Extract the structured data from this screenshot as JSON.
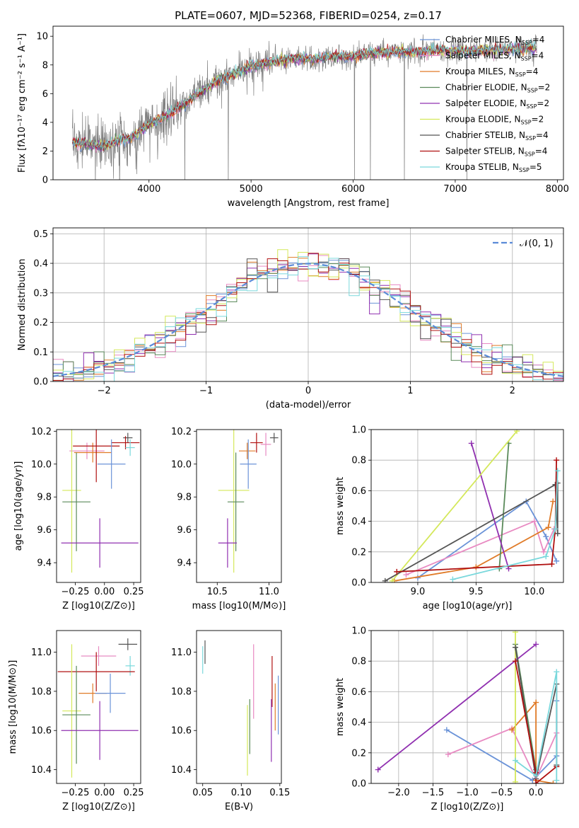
{
  "chart_data": [
    {
      "id": "spectrum",
      "type": "line",
      "title": "PLATE=0607, MJD=52368, FIBERID=0254, z=0.17",
      "xlabel": "wavelength [Angstrom, rest frame]",
      "ylabel": "Flux [fλ10⁻¹⁷ erg cm⁻² s⁻¹ A⁻¹]",
      "xlim": [
        3060,
        8060
      ],
      "ylim": [
        0,
        10.7
      ],
      "xticks": [
        4000,
        5000,
        6000,
        7000,
        8000
      ],
      "yticks": [
        0,
        2,
        4,
        6,
        8,
        10
      ],
      "grid": false,
      "legend_position": "right",
      "data_series": {
        "name": "data",
        "color": "#808080",
        "continuum": [
          [
            3250,
            2.6
          ],
          [
            3550,
            2.3
          ],
          [
            3700,
            2.7
          ],
          [
            3850,
            3.0
          ],
          [
            4000,
            3.9
          ],
          [
            4200,
            4.6
          ],
          [
            4400,
            5.5
          ],
          [
            4600,
            6.6
          ],
          [
            4800,
            7.3
          ],
          [
            5000,
            7.9
          ],
          [
            5200,
            8.2
          ],
          [
            5400,
            8.4
          ],
          [
            5600,
            8.4
          ],
          [
            5800,
            8.6
          ],
          [
            6000,
            8.6
          ],
          [
            6200,
            8.8
          ],
          [
            6400,
            8.9
          ],
          [
            6600,
            8.9
          ],
          [
            6800,
            9.0
          ],
          [
            7000,
            9.0
          ],
          [
            7200,
            9.0
          ],
          [
            7400,
            9.0
          ],
          [
            7600,
            9.1
          ],
          [
            7800,
            9.2
          ]
        ]
      },
      "series": [
        {
          "name": "Chabrier MILES, N_SSP=4",
          "label": "Chabrier MILES, N",
          "ssp": "=4",
          "color": "#6b93d8"
        },
        {
          "name": "Salpeter MILES, N_SSP=4",
          "label": "Salpeter MILES, N",
          "ssp": "=4",
          "color": "#e88ac2"
        },
        {
          "name": "Kroupa MILES, N_SSP=4",
          "label": "Kroupa MILES, N",
          "ssp": "=4",
          "color": "#e07b28"
        },
        {
          "name": "Chabrier ELODIE, N_SSP=2",
          "label": "Chabrier ELODIE, N",
          "ssp": "=2",
          "color": "#5a8a5a"
        },
        {
          "name": "Salpeter ELODIE, N_SSP=2",
          "label": "Salpeter ELODIE, N",
          "ssp": "=2",
          "color": "#9030b0"
        },
        {
          "name": "Kroupa ELODIE, N_SSP=2",
          "label": "Kroupa ELODIE, N",
          "ssp": "=2",
          "color": "#d4e85a"
        },
        {
          "name": "Chabrier STELIB, N_SSP=4",
          "label": "Chabrier STELIB, N",
          "ssp": "=4",
          "color": "#555555"
        },
        {
          "name": "Salpeter STELIB, N_SSP=4",
          "label": "Salpeter STELIB, N",
          "ssp": "=4",
          "color": "#b01010"
        },
        {
          "name": "Kroupa STELIB, N_SSP=5",
          "label": "Kroupa STELIB, N",
          "ssp": "=5",
          "color": "#7ad8dc"
        }
      ]
    },
    {
      "id": "residuals",
      "type": "line",
      "xlabel": "(data-model)/error",
      "ylabel": "Normed distribution",
      "xlim": [
        -2.5,
        2.5
      ],
      "ylim": [
        0,
        0.52
      ],
      "xticks": [
        -2,
        -1,
        0,
        1,
        2
      ],
      "yticks": [
        0.0,
        0.1,
        0.2,
        0.3,
        0.4,
        0.5
      ],
      "grid": true,
      "legend": "𝒩(0, 1)",
      "legend_position": "top-right",
      "bin_width": 0.1,
      "gaussian": {
        "mean": 0,
        "sigma": 1,
        "color": "#5b8bd8"
      }
    },
    {
      "id": "age_vs_Z",
      "type": "scatter",
      "xlabel": "Z [log10(Z/Z⊙)]",
      "ylabel": "age  [log10(age/yr)]",
      "xlim": [
        -0.41,
        0.31
      ],
      "ylim": [
        9.28,
        10.21
      ],
      "xticks": [
        -0.25,
        0.0,
        0.25
      ],
      "yticks": [
        9.4,
        9.6,
        9.8,
        10.0,
        10.2
      ],
      "points": [
        {
          "x": 0.2,
          "y": 10.16,
          "xerr": 0.04,
          "yerr": 0.03,
          "color": "#555555"
        },
        {
          "x": 0.18,
          "y": 10.13,
          "xerr": 0.12,
          "yerr": 0.04,
          "color": "#b01010"
        },
        {
          "x": 0.22,
          "y": 10.1,
          "xerr": 0.04,
          "yerr": 0.05,
          "color": "#7ad8dc"
        },
        {
          "x": -0.15,
          "y": 10.08,
          "xerr": 0.15,
          "yerr": 0.05,
          "color": "#e88ac2"
        },
        {
          "x": -0.1,
          "y": 10.07,
          "xerr": 0.16,
          "yerr": 0.06,
          "color": "#e07b28"
        },
        {
          "x": -0.07,
          "y": 10.11,
          "xerr": 0.2,
          "yerr": 0.22,
          "color": "#b01010"
        },
        {
          "x": 0.06,
          "y": 10.0,
          "xerr": 0.12,
          "yerr": 0.15,
          "color": "#6b93d8"
        },
        {
          "x": -0.28,
          "y": 9.84,
          "xerr": 0.08,
          "yerr": 0.5,
          "color": "#d4e85a"
        },
        {
          "x": -0.24,
          "y": 9.77,
          "xerr": 0.12,
          "yerr": 0.3,
          "color": "#5a8a5a"
        },
        {
          "x": -0.04,
          "y": 9.52,
          "xerr": 0.33,
          "yerr": 0.15,
          "color": "#9030b0"
        }
      ]
    },
    {
      "id": "age_vs_mass",
      "type": "scatter",
      "xlabel": "mass [log10(M/M⊙)]",
      "ylabel": "",
      "xlim": [
        10.3,
        11.12
      ],
      "ylim": [
        9.28,
        10.21
      ],
      "xticks": [
        10.5,
        11.0
      ],
      "yticks": [
        9.4,
        9.6,
        9.8,
        10.0,
        10.2
      ],
      "points": [
        {
          "x": 11.05,
          "y": 10.16,
          "xerr": 0.04,
          "yerr": 0.03,
          "color": "#555555"
        },
        {
          "x": 10.97,
          "y": 10.12,
          "xerr": 0.05,
          "yerr": 0.07,
          "color": "#e88ac2"
        },
        {
          "x": 10.88,
          "y": 10.13,
          "xerr": 0.06,
          "yerr": 0.06,
          "color": "#b01010"
        },
        {
          "x": 10.79,
          "y": 10.08,
          "xerr": 0.08,
          "yerr": 0.05,
          "color": "#e07b28"
        },
        {
          "x": 10.8,
          "y": 10.0,
          "xerr": 0.08,
          "yerr": 0.15,
          "color": "#6b93d8"
        },
        {
          "x": 10.66,
          "y": 9.84,
          "xerr": 0.15,
          "yerr": 0.5,
          "color": "#d4e85a"
        },
        {
          "x": 10.68,
          "y": 9.77,
          "xerr": 0.08,
          "yerr": 0.3,
          "color": "#5a8a5a"
        },
        {
          "x": 10.6,
          "y": 9.52,
          "xerr": 0.09,
          "yerr": 0.15,
          "color": "#9030b0"
        }
      ]
    },
    {
      "id": "weight_vs_age",
      "type": "line",
      "xlabel": "age  [log10(age/yr)]",
      "ylabel": "mass weight",
      "xlim": [
        8.6,
        10.25
      ],
      "ylim": [
        0,
        1.0
      ],
      "xticks": [
        9.0,
        9.5,
        10.0
      ],
      "yticks": [
        0.0,
        0.2,
        0.4,
        0.6,
        0.8,
        1.0
      ],
      "grid": true,
      "series": [
        {
          "name": "Chabrier MILES",
          "color": "#6b93d8",
          "x": [
            9.0,
            9.93,
            10.1,
            10.19
          ],
          "y": [
            0.03,
            0.53,
            0.3,
            0.14
          ]
        },
        {
          "name": "Salpeter MILES",
          "color": "#e88ac2",
          "x": [
            8.9,
            10.0,
            10.08,
            10.17
          ],
          "y": [
            0.05,
            0.4,
            0.2,
            0.35
          ]
        },
        {
          "name": "Kroupa MILES",
          "color": "#e07b28",
          "x": [
            8.8,
            9.5,
            10.12,
            10.16
          ],
          "y": [
            0.01,
            0.1,
            0.36,
            0.53
          ]
        },
        {
          "name": "Chabrier ELODIE",
          "color": "#5a8a5a",
          "x": [
            9.7,
            9.78
          ],
          "y": [
            0.09,
            0.91
          ]
        },
        {
          "name": "Salpeter ELODIE",
          "color": "#9030b0",
          "x": [
            9.46,
            9.78
          ],
          "y": [
            0.91,
            0.09
          ]
        },
        {
          "name": "Kroupa ELODIE",
          "color": "#d4e85a",
          "x": [
            8.78,
            9.85
          ],
          "y": [
            0.01,
            0.99
          ]
        },
        {
          "name": "Chabrier STELIB",
          "color": "#555555",
          "x": [
            8.72,
            10.18,
            10.2,
            10.2
          ],
          "y": [
            0.01,
            0.64,
            0.32,
            0.65
          ]
        },
        {
          "name": "Salpeter STELIB",
          "color": "#b01010",
          "x": [
            8.82,
            10.15,
            10.18,
            10.19
          ],
          "y": [
            0.07,
            0.12,
            0.35,
            0.8
          ]
        },
        {
          "name": "Kroupa STELIB",
          "color": "#7ad8dc",
          "x": [
            9.3,
            10.1,
            10.18,
            10.2
          ],
          "y": [
            0.02,
            0.17,
            0.35,
            0.73
          ]
        }
      ]
    },
    {
      "id": "mass_vs_Z",
      "type": "scatter",
      "xlabel": "Z [log10(Z/Z⊙)]",
      "ylabel": "mass [log10(M/M⊙)]",
      "xlim": [
        -0.41,
        0.31
      ],
      "ylim": [
        10.33,
        11.11
      ],
      "xticks": [
        -0.25,
        0.0,
        0.25
      ],
      "yticks": [
        10.4,
        10.6,
        10.8,
        11.0
      ],
      "points": [
        {
          "x": 0.2,
          "y": 11.04,
          "xerr": 0.08,
          "yerr": 0.03,
          "color": "#555555"
        },
        {
          "x": 0.22,
          "y": 10.93,
          "xerr": 0.04,
          "yerr": 0.05,
          "color": "#7ad8dc"
        },
        {
          "x": -0.05,
          "y": 10.98,
          "xerr": 0.15,
          "yerr": 0.05,
          "color": "#e88ac2"
        },
        {
          "x": -0.07,
          "y": 10.9,
          "xerr": 0.33,
          "yerr": 0.1,
          "color": "#b01010"
        },
        {
          "x": -0.1,
          "y": 10.79,
          "xerr": 0.12,
          "yerr": 0.05,
          "color": "#e07b28"
        },
        {
          "x": 0.05,
          "y": 10.79,
          "xerr": 0.13,
          "yerr": 0.1,
          "color": "#6b93d8"
        },
        {
          "x": -0.28,
          "y": 10.7,
          "xerr": 0.08,
          "yerr": 0.34,
          "color": "#d4e85a"
        },
        {
          "x": -0.24,
          "y": 10.68,
          "xerr": 0.12,
          "yerr": 0.25,
          "color": "#5a8a5a"
        },
        {
          "x": -0.04,
          "y": 10.6,
          "xerr": 0.33,
          "yerr": 0.15,
          "color": "#9030b0"
        }
      ]
    },
    {
      "id": "mass_vs_ebv",
      "type": "scatter",
      "xlabel": "E(B-V)",
      "ylabel": "",
      "xlim": [
        0.042,
        0.152
      ],
      "ylim": [
        10.33,
        11.11
      ],
      "xticks": [
        0.05,
        0.1,
        0.15
      ],
      "yticks": [
        10.4,
        10.6,
        10.8,
        11.0
      ],
      "points": [
        {
          "x": 0.053,
          "y": 11.0,
          "yerr": 0.06,
          "color": "#555555"
        },
        {
          "x": 0.05,
          "y": 10.96,
          "yerr": 0.07,
          "color": "#7ad8dc"
        },
        {
          "x": 0.116,
          "y": 10.85,
          "yerr": 0.19,
          "color": "#e88ac2"
        },
        {
          "x": 0.14,
          "y": 10.85,
          "yerr": 0.13,
          "color": "#b01010"
        },
        {
          "x": 0.144,
          "y": 10.72,
          "yerr": 0.12,
          "color": "#e07b28"
        },
        {
          "x": 0.148,
          "y": 10.73,
          "yerr": 0.15,
          "color": "#6b93d8"
        },
        {
          "x": 0.108,
          "y": 10.55,
          "yerr": 0.18,
          "color": "#d4e85a"
        },
        {
          "x": 0.111,
          "y": 10.62,
          "yerr": 0.14,
          "color": "#5a8a5a"
        },
        {
          "x": 0.139,
          "y": 10.6,
          "yerr": 0.16,
          "color": "#9030b0"
        }
      ]
    },
    {
      "id": "weight_vs_Z",
      "type": "line",
      "xlabel": "Z [log10(Z/Z⊙)]",
      "ylabel": "mass weight",
      "xlim": [
        -2.4,
        0.4
      ],
      "ylim": [
        0,
        1.0
      ],
      "xticks": [
        -2.0,
        -1.5,
        -1.0,
        -0.5,
        0.0
      ],
      "yticks": [
        0.0,
        0.2,
        0.4,
        0.6,
        0.8,
        1.0
      ],
      "grid": true,
      "series": [
        {
          "name": "Chabrier MILES",
          "color": "#6b93d8",
          "x": [
            -1.3,
            -0.05,
            0.3,
            0.3
          ],
          "y": [
            0.35,
            0.02,
            0.18,
            0.54
          ]
        },
        {
          "name": "Salpeter MILES",
          "color": "#e88ac2",
          "x": [
            -1.28,
            -0.35,
            0.0,
            0.3
          ],
          "y": [
            0.19,
            0.36,
            0.03,
            0.33
          ]
        },
        {
          "name": "Kroupa MILES",
          "color": "#e07b28",
          "x": [
            -0.35,
            0.0,
            0.0,
            0.25
          ],
          "y": [
            0.35,
            0.53,
            0.02,
            0.0
          ]
        },
        {
          "name": "Chabrier ELODIE",
          "color": "#5a8a5a",
          "x": [
            -0.3,
            0.0
          ],
          "y": [
            0.91,
            0.09
          ]
        },
        {
          "name": "Salpeter ELODIE",
          "color": "#9030b0",
          "x": [
            -2.3,
            0.0
          ],
          "y": [
            0.09,
            0.91
          ]
        },
        {
          "name": "Kroupa ELODIE",
          "color": "#d4e85a",
          "x": [
            -0.3,
            -0.3
          ],
          "y": [
            0.01,
            0.99
          ]
        },
        {
          "name": "Chabrier STELIB",
          "color": "#555555",
          "x": [
            -0.3,
            0.0,
            0.3,
            0.3
          ],
          "y": [
            0.89,
            0.03,
            0.65,
            0.12
          ]
        },
        {
          "name": "Salpeter STELIB",
          "color": "#b01010",
          "x": [
            -0.3,
            0.0,
            0.0,
            0.3
          ],
          "y": [
            0.8,
            0.07,
            0.0,
            0.11
          ]
        },
        {
          "name": "Kroupa STELIB",
          "color": "#7ad8dc",
          "x": [
            -0.3,
            0.0,
            0.3,
            0.3
          ],
          "y": [
            0.15,
            0.05,
            0.73,
            0.02
          ]
        }
      ]
    }
  ]
}
